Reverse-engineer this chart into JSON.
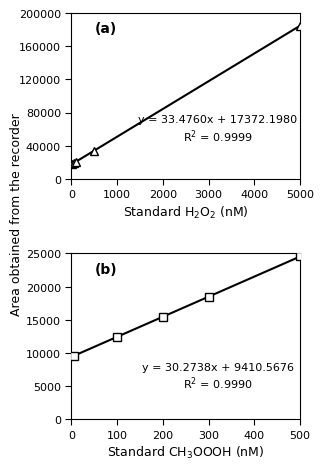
{
  "panel_a": {
    "label": "(a)",
    "x_data": [
      10,
      50,
      100,
      500,
      5000
    ],
    "slope": 33.476,
    "intercept": 17372.198,
    "r2": 0.9999,
    "equation": "y = 33.4760x + 17372.1980",
    "r2_str": "R$^2$ = 0.9999",
    "xlabel": "Standard H$_2$O$_2$ (nM)",
    "xlim": [
      0,
      5000
    ],
    "ylim": [
      0,
      200000
    ],
    "yticks": [
      0,
      40000,
      80000,
      120000,
      160000,
      200000
    ],
    "xticks": [
      0,
      1000,
      2000,
      3000,
      4000,
      5000
    ],
    "marker": "^",
    "eq_x": 3200,
    "eq_y": 60000
  },
  "panel_b": {
    "label": "(b)",
    "x_data": [
      5,
      100,
      200,
      300,
      500
    ],
    "slope": 30.2738,
    "intercept": 9410.5676,
    "r2": 0.999,
    "equation": "y = 30.2738x + 9410.5676",
    "r2_str": "R$^2$ = 0.9990",
    "xlabel": "Standard CH$_3$OOOH (nM)",
    "xlim": [
      0,
      500
    ],
    "ylim": [
      0,
      25000
    ],
    "yticks": [
      0,
      5000,
      10000,
      15000,
      20000,
      25000
    ],
    "xticks": [
      0,
      100,
      200,
      300,
      400,
      500
    ],
    "marker": "s",
    "eq_x": 320,
    "eq_y": 6500
  },
  "ylabel": "Area obtained from the recorder",
  "background_color": "#ffffff",
  "line_color": "#000000",
  "marker_facecolor": "#ffffff",
  "marker_edge_color": "#000000",
  "marker_size": 6,
  "tick_font_size": 8,
  "label_font_size": 9,
  "panel_label_font_size": 10,
  "eq_font_size": 8
}
